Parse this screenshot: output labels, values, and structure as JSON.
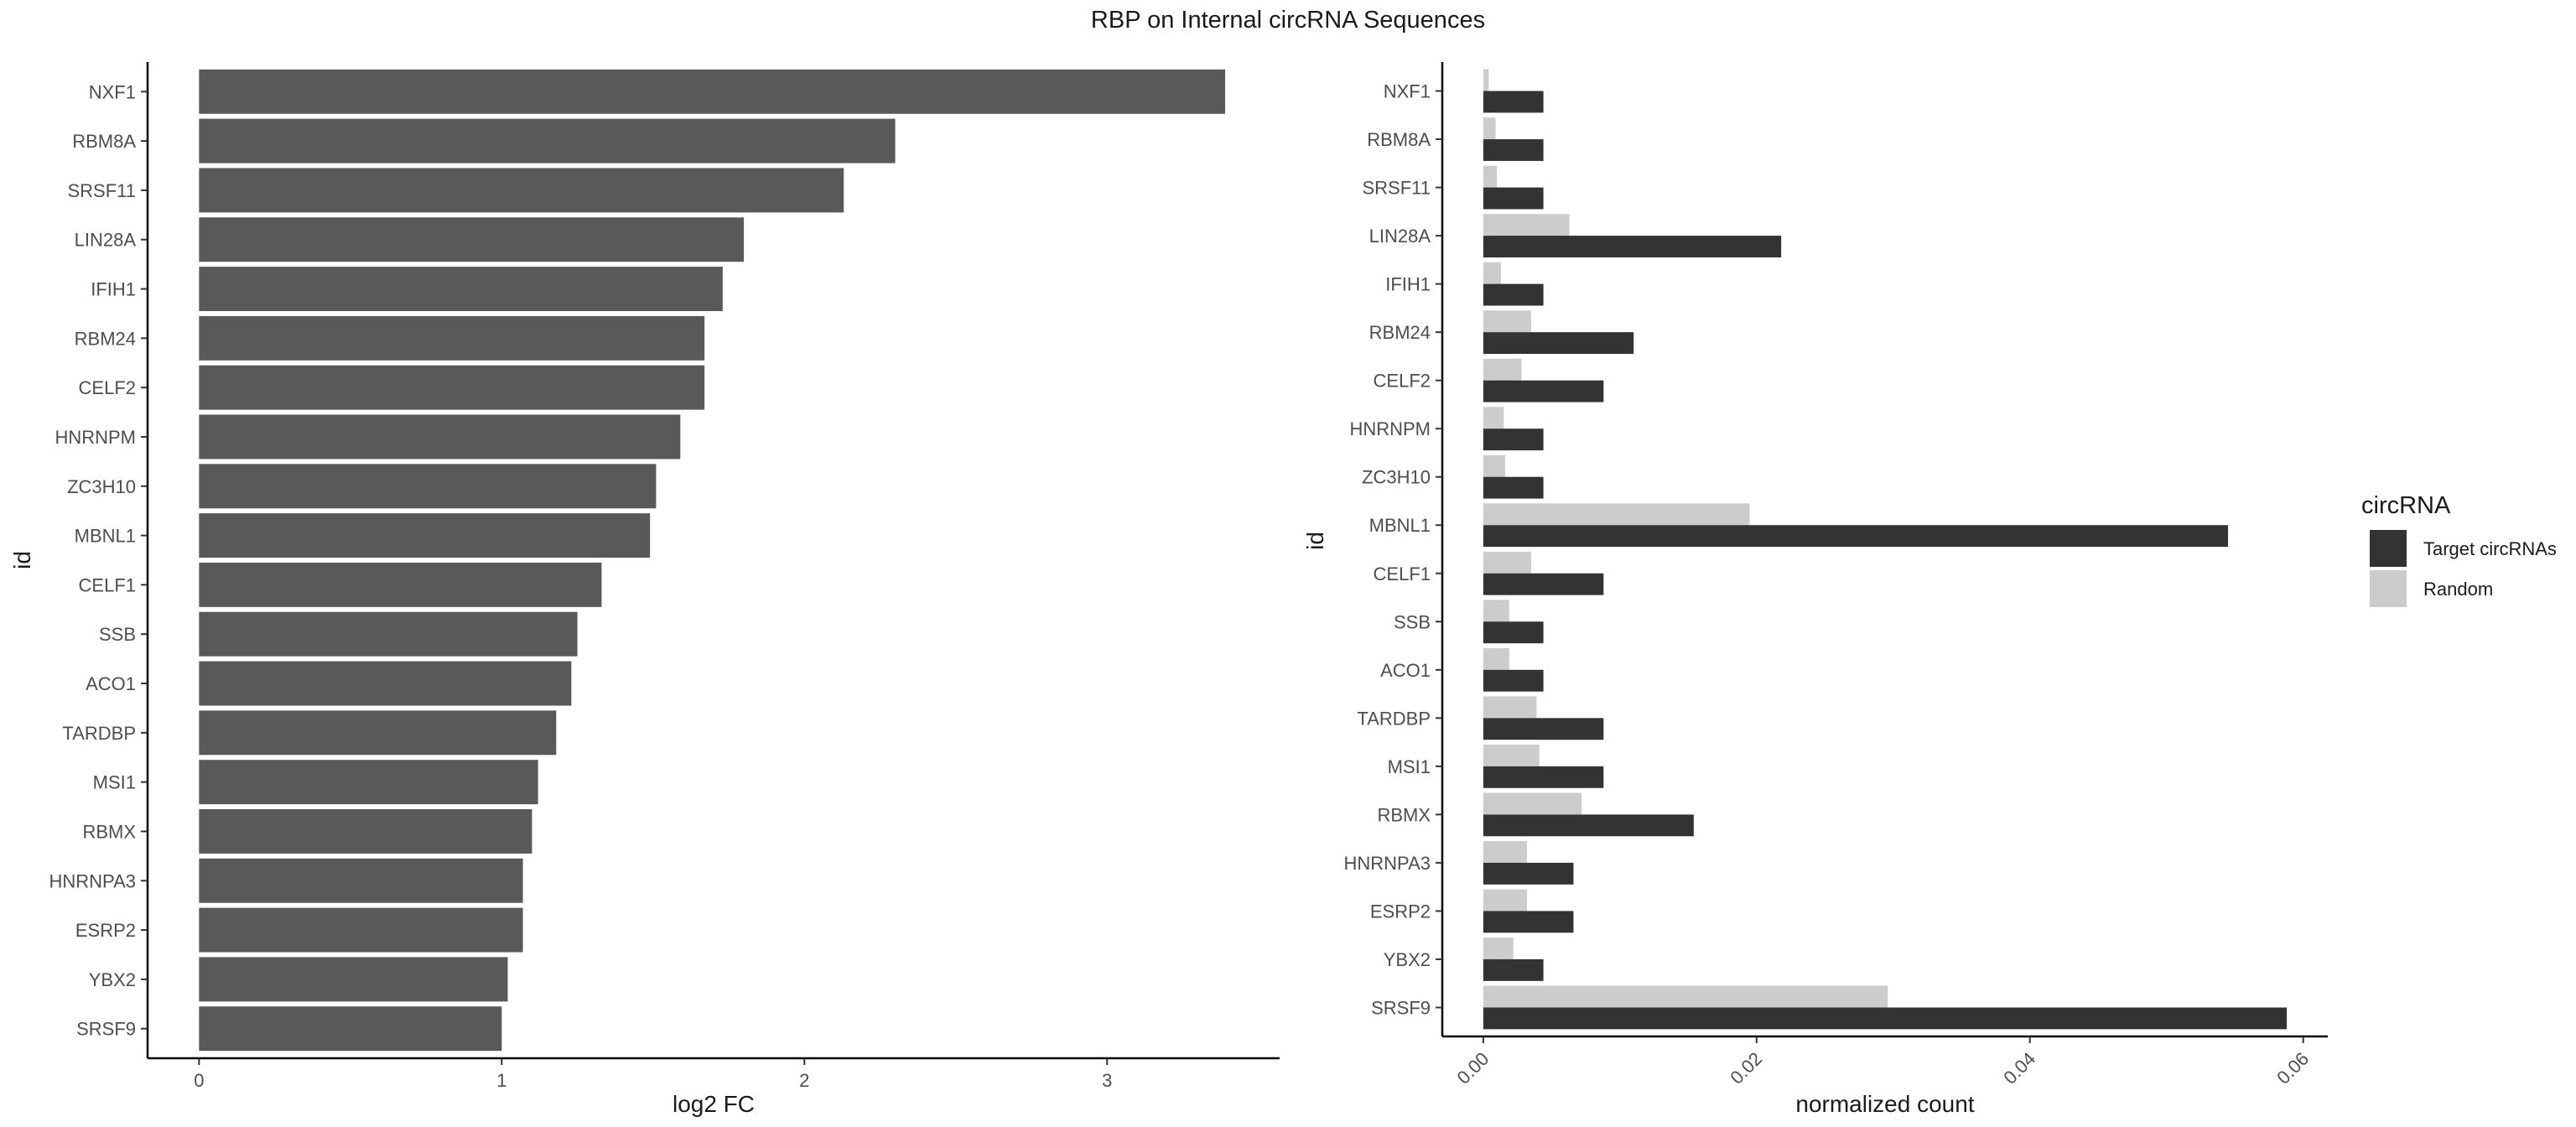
{
  "figure": {
    "title": "RBP on Internal circRNA Sequences"
  },
  "chart_data": [
    {
      "type": "bar",
      "orientation": "horizontal",
      "categories": [
        "NXF1",
        "RBM8A",
        "SRSF11",
        "LIN28A",
        "IFIH1",
        "RBM24",
        "CELF2",
        "HNRNPM",
        "ZC3H10",
        "MBNL1",
        "CELF1",
        "SSB",
        "ACO1",
        "TARDBP",
        "MSI1",
        "RBMX",
        "HNRNPA3",
        "ESRP2",
        "YBX2",
        "SRSF9"
      ],
      "values": [
        3.39,
        2.3,
        2.13,
        1.8,
        1.73,
        1.67,
        1.67,
        1.59,
        1.51,
        1.49,
        1.33,
        1.25,
        1.23,
        1.18,
        1.12,
        1.1,
        1.07,
        1.07,
        1.02,
        1.0
      ],
      "xlabel": "log2 FC",
      "ylabel": "id",
      "xlim": [
        -0.17,
        3.57
      ],
      "xticks": [
        0,
        1,
        2,
        3
      ],
      "grid": false,
      "bar_color": "#595959"
    },
    {
      "type": "bar",
      "orientation": "horizontal",
      "grouped": true,
      "categories": [
        "NXF1",
        "RBM8A",
        "SRSF11",
        "LIN28A",
        "IFIH1",
        "RBM24",
        "CELF2",
        "HNRNPM",
        "ZC3H10",
        "MBNL1",
        "CELF1",
        "SSB",
        "ACO1",
        "TARDBP",
        "MSI1",
        "RBMX",
        "HNRNPA3",
        "ESRP2",
        "YBX2",
        "SRSF9"
      ],
      "series": [
        {
          "name": "Target circRNAs",
          "color": "#333333",
          "values": [
            0.0044,
            0.0044,
            0.0044,
            0.0218,
            0.0044,
            0.011,
            0.0088,
            0.0044,
            0.0044,
            0.0545,
            0.0088,
            0.0044,
            0.0044,
            0.0088,
            0.0088,
            0.0154,
            0.0066,
            0.0066,
            0.0044,
            0.0588
          ]
        },
        {
          "name": "Random",
          "color": "#cccccc",
          "values": [
            0.0004,
            0.0009,
            0.001,
            0.0063,
            0.0013,
            0.0035,
            0.0028,
            0.0015,
            0.0016,
            0.0195,
            0.0035,
            0.0019,
            0.0019,
            0.0039,
            0.0041,
            0.0072,
            0.0032,
            0.0032,
            0.0022,
            0.0296
          ]
        }
      ],
      "xlabel": "normalized count",
      "ylabel": "id",
      "xlim": [
        -0.003,
        0.0618
      ],
      "xticks": [
        0,
        0.02,
        0.04,
        0.06
      ],
      "xtick_labels": [
        "0.00",
        "0.02",
        "0.04",
        "0.06"
      ],
      "xtick_rotation": -45,
      "grid": false,
      "legend": {
        "title": "circRNA",
        "placement": "right",
        "entries": [
          "Target circRNAs",
          "Random"
        ]
      }
    }
  ]
}
